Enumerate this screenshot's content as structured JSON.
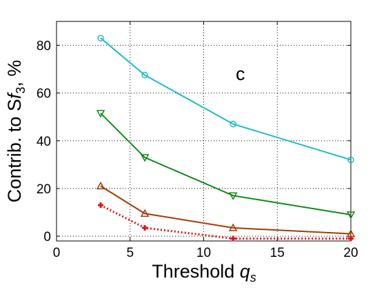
{
  "chart_data": {
    "type": "line",
    "title": "",
    "panel_label": "c",
    "xlabel": {
      "text": "Threshold ",
      "symbol": "q",
      "subscript": "s"
    },
    "ylabel": {
      "text": "Contrib. to S",
      "symbol": "f",
      "subscript": "3",
      "suffix": ", %"
    },
    "xlim": [
      0,
      20
    ],
    "ylim": [
      -2,
      90
    ],
    "xticks": [
      0,
      5,
      10,
      15,
      20
    ],
    "yticks": [
      0,
      20,
      40,
      60,
      80
    ],
    "grid": true,
    "legend": "none",
    "x": [
      3,
      6,
      12,
      20
    ],
    "series": [
      {
        "values": [
          83,
          67.5,
          47,
          32
        ],
        "color": "#1cbcc8",
        "marker": "circle",
        "dash": "solid"
      },
      {
        "values": [
          51.5,
          33,
          17,
          9
        ],
        "color": "#0e8a12",
        "marker": "triangle-down",
        "dash": "solid"
      },
      {
        "values": [
          21,
          9.5,
          3.5,
          1
        ],
        "color": "#a43a00",
        "marker": "triangle-up",
        "dash": "solid"
      },
      {
        "values": [
          13,
          3.5,
          -1,
          -1
        ],
        "color": "#e61010",
        "marker": "plus",
        "dash": "dotted"
      }
    ]
  }
}
